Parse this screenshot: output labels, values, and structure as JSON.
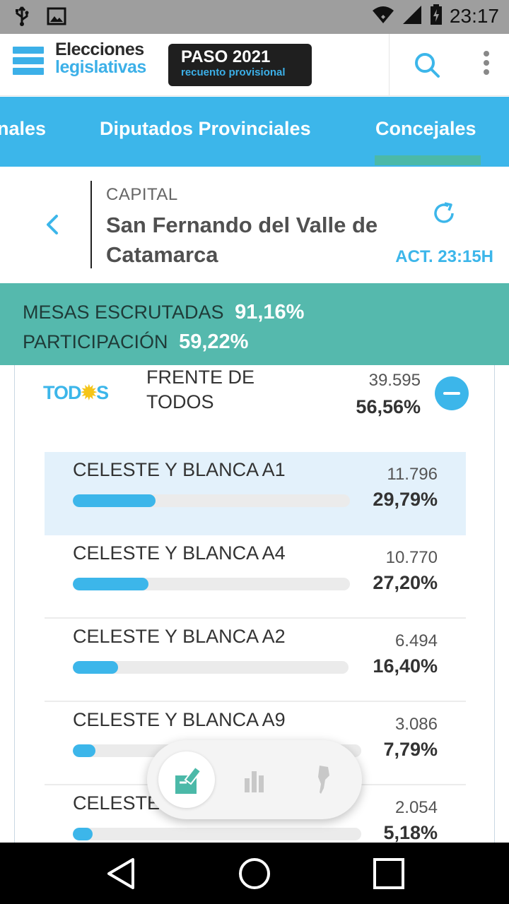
{
  "status_bar": {
    "time": "23:17",
    "icons": [
      "usb-icon",
      "image-icon",
      "wifi-icon",
      "signal-icon",
      "battery-icon"
    ]
  },
  "header": {
    "logo_line1": "Elecciones",
    "logo_line2": "legislativas",
    "badge_title": "PASO 2021",
    "badge_subtitle": "recuento provisional",
    "icons": [
      "search-icon",
      "more-vert-icon"
    ]
  },
  "tabs": [
    {
      "label": "nales",
      "active": false
    },
    {
      "label": "Diputados Provinciales",
      "active": false
    },
    {
      "label": "Concejales",
      "active": true
    }
  ],
  "location": {
    "region": "CAPITAL",
    "place": "San Fernando del Valle de Catamarca",
    "updated": "ACT. 23:15H"
  },
  "stats": {
    "mesas_label": "MESAS ESCRUTADAS",
    "mesas_value": "91,16%",
    "participacion_label": "PARTICIPACIÓN",
    "participacion_value": "59,22%"
  },
  "party": {
    "logo_text_left": "TOD",
    "logo_text_right": "S",
    "name": "FRENTE DE TODOS",
    "votes": "39.595",
    "percent": "56,56%"
  },
  "lists": [
    {
      "name": "CELESTE Y BLANCA A1",
      "votes": "11.796",
      "percent": "29,79%",
      "share": 0.2979,
      "selected": true
    },
    {
      "name": "CELESTE Y BLANCA A4",
      "votes": "10.770",
      "percent": "27,20%",
      "share": 0.272,
      "selected": false
    },
    {
      "name": "CELESTE Y BLANCA A2",
      "votes": "6.494",
      "percent": "16,40%",
      "share": 0.164,
      "selected": false
    },
    {
      "name": "CELESTE Y BLANCA A9",
      "votes": "3.086",
      "percent": "7,79%",
      "share": 0.0779,
      "selected": false
    },
    {
      "name": "CELESTE Y BLANCA",
      "votes": "2.054",
      "percent": "5,18%",
      "share": 0.0518,
      "selected": false
    }
  ],
  "colors": {
    "accent": "#3cb6ea",
    "teal": "#55b9ad",
    "status_bar": "#9e9e9e"
  },
  "fab": {
    "icons": [
      "vote-ballot-icon",
      "bar-chart-icon",
      "argentina-map-icon"
    ]
  },
  "nav": {
    "icons": [
      "back-triangle-icon",
      "home-circle-icon",
      "recents-square-icon"
    ]
  }
}
